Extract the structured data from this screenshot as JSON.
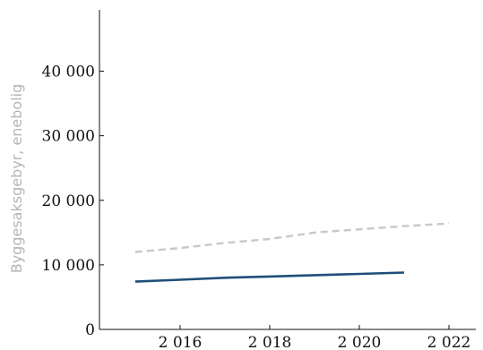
{
  "chart_data": {
    "type": "line",
    "title": "",
    "xlabel": "",
    "ylabel": "Byggesaksgebyr, enebolig",
    "xlim": [
      2014.2,
      2022.6
    ],
    "ylim": [
      0,
      49500
    ],
    "x_ticks": [
      2016,
      2018,
      2020,
      2022
    ],
    "x_tick_labels": [
      "2 016",
      "2 018",
      "2 020",
      "2 022"
    ],
    "y_ticks": [
      0,
      10000,
      20000,
      30000,
      40000
    ],
    "y_tick_labels": [
      "0",
      "10 000",
      "20 000",
      "30 000",
      "40 000"
    ],
    "grid": false,
    "legend": "none",
    "series": [
      {
        "style": "solid",
        "color": "#1f4e79",
        "x": [
          2015,
          2016,
          2017,
          2018,
          2019,
          2020,
          2021
        ],
        "y": [
          7400,
          7700,
          8000,
          8200,
          8400,
          8600,
          8800
        ]
      },
      {
        "style": "dashed",
        "color": "#c8c8c8",
        "x": [
          2015,
          2016,
          2017,
          2018,
          2019,
          2020,
          2021,
          2022
        ],
        "y": [
          12000,
          12600,
          13400,
          14000,
          15000,
          15500,
          16000,
          16400
        ]
      }
    ]
  }
}
